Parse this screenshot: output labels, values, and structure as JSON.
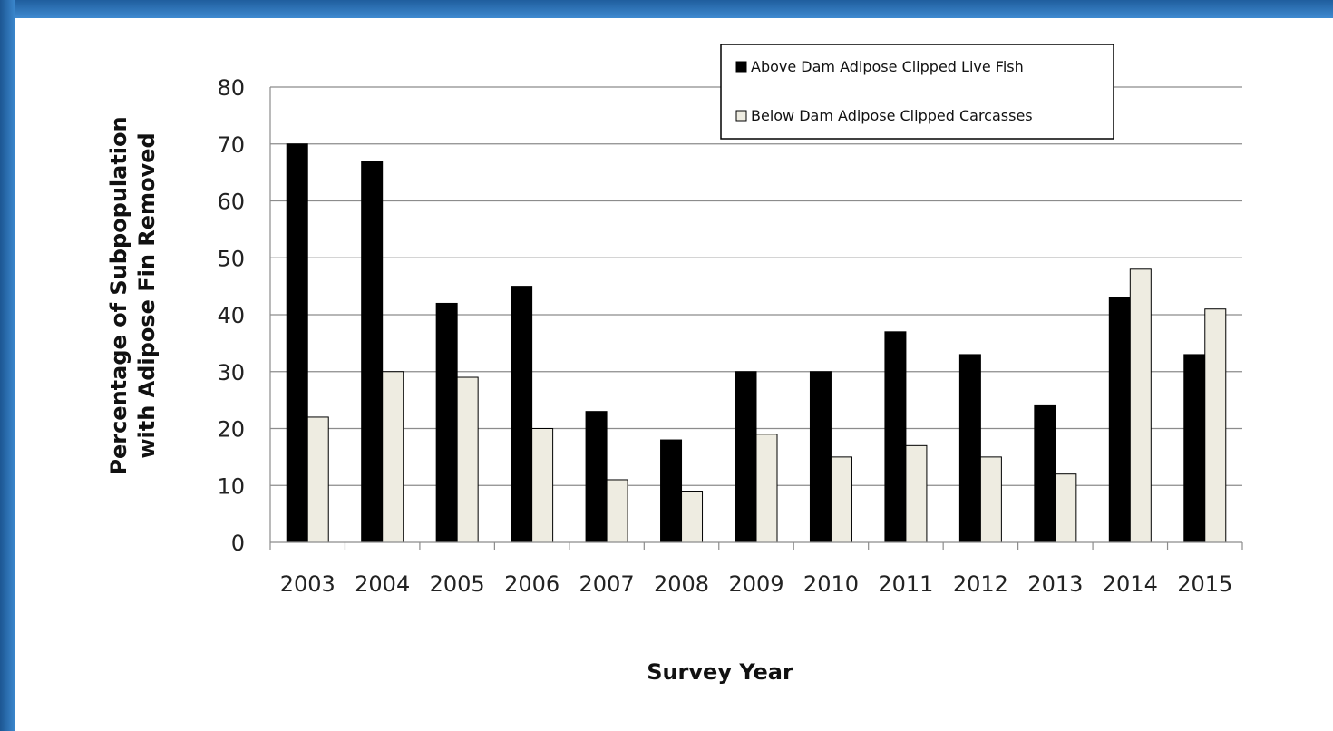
{
  "chart_data": {
    "type": "bar",
    "title": "",
    "xlabel": "Survey Year",
    "ylabel_lines": [
      "Percentage of Subpopulation",
      "with Adipose Fin Removed"
    ],
    "ylim": [
      0,
      80
    ],
    "yticks": [
      0,
      10,
      20,
      30,
      40,
      50,
      60,
      70,
      80
    ],
    "grid": true,
    "legend_position": "top-right",
    "categories": [
      "2003",
      "2004",
      "2005",
      "2006",
      "2007",
      "2008",
      "2009",
      "2010",
      "2011",
      "2012",
      "2013",
      "2014",
      "2015"
    ],
    "series": [
      {
        "name": "Above Dam Adipose Clipped Live Fish",
        "color": "#000000",
        "values": [
          70,
          67,
          42,
          45,
          23,
          18,
          30,
          30,
          37,
          33,
          24,
          43,
          33
        ]
      },
      {
        "name": "Below Dam Adipose Clipped Carcasses",
        "color": "#eeece1",
        "values": [
          22,
          30,
          29,
          20,
          11,
          9,
          19,
          15,
          17,
          15,
          12,
          48,
          41
        ]
      }
    ]
  }
}
